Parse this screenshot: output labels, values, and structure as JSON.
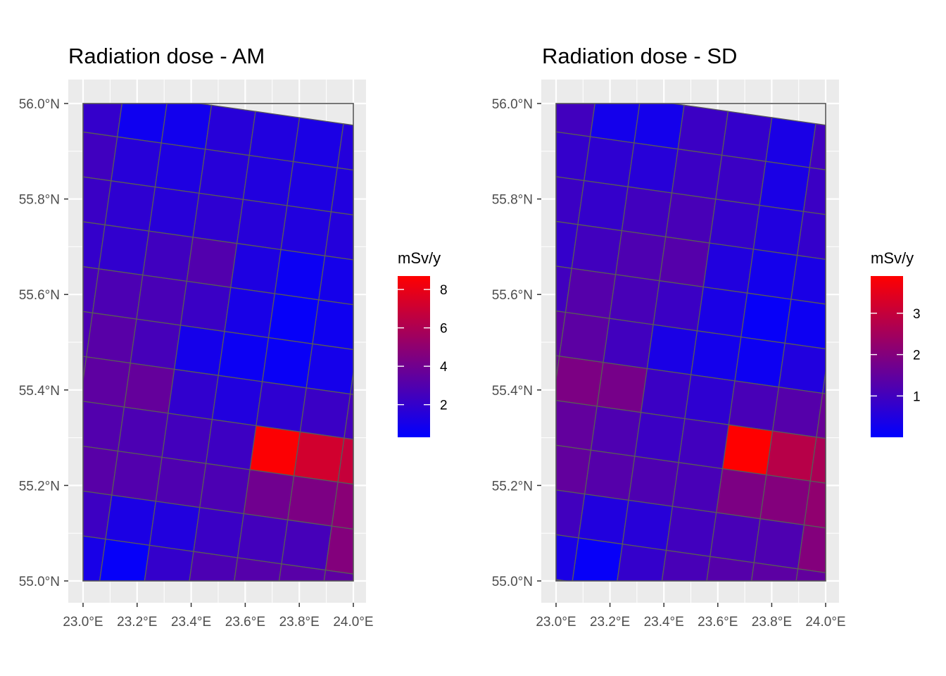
{
  "chart_data": [
    {
      "type": "heatmap",
      "title": "Radiation dose - AM",
      "x_ticks": [
        "23.0°E",
        "23.2°E",
        "23.4°E",
        "23.6°E",
        "23.8°E",
        "24.0°E"
      ],
      "x_tick_values": [
        23.0,
        23.2,
        23.4,
        23.6,
        23.8,
        24.0
      ],
      "y_ticks": [
        "55.0°N",
        "55.2°N",
        "55.4°N",
        "55.6°N",
        "55.8°N",
        "56.0°N"
      ],
      "y_tick_values": [
        55.0,
        55.2,
        55.4,
        55.6,
        55.8,
        56.0
      ],
      "xlim": [
        23.0,
        24.0
      ],
      "ylim": [
        55.0,
        56.0
      ],
      "legend": {
        "title": "mSv/y",
        "ticks": [
          "2",
          "4",
          "6",
          "8"
        ],
        "tick_values": [
          2,
          4,
          6,
          8
        ],
        "min": 0.3,
        "max": 8.7,
        "low_color": "#0000ff",
        "high_color": "#ff0000"
      },
      "grid_rows": 12,
      "grid_cols": 8,
      "values": [
        [
          2.0,
          0.8,
          0.9,
          1.6,
          1.4,
          1.2,
          1.5,
          2.6
        ],
        [
          2.4,
          1.6,
          1.3,
          1.6,
          1.4,
          1.3,
          1.4,
          2.4
        ],
        [
          2.2,
          1.8,
          1.6,
          1.8,
          1.6,
          1.4,
          1.5,
          2.2
        ],
        [
          2.0,
          1.9,
          2.4,
          3.0,
          1.3,
          0.7,
          1.0,
          1.8
        ],
        [
          2.6,
          2.8,
          2.7,
          2.2,
          1.1,
          0.5,
          0.8,
          1.6
        ],
        [
          2.8,
          3.2,
          2.6,
          1.0,
          0.7,
          0.6,
          1.0,
          1.8
        ],
        [
          3.0,
          3.4,
          3.6,
          1.9,
          1.4,
          1.8,
          2.2,
          2.6
        ],
        [
          2.6,
          3.0,
          2.8,
          2.5,
          2.3,
          8.6,
          7.2,
          6.8
        ],
        [
          1.5,
          3.2,
          3.0,
          2.9,
          2.8,
          4.0,
          4.4,
          4.8
        ],
        [
          2.0,
          2.3,
          1.2,
          1.4,
          2.2,
          2.5,
          2.6,
          4.6
        ],
        [
          1.6,
          1.1,
          0.5,
          2.0,
          2.8,
          3.1,
          3.2,
          3.4
        ],
        [
          1.3,
          1.2,
          1.2,
          1.6,
          2.6,
          3.0,
          3.0,
          3.0
        ]
      ]
    },
    {
      "type": "heatmap",
      "title": "Radiation dose - SD",
      "x_ticks": [
        "23.0°E",
        "23.2°E",
        "23.4°E",
        "23.6°E",
        "23.8°E",
        "24.0°E"
      ],
      "x_tick_values": [
        23.0,
        23.2,
        23.4,
        23.6,
        23.8,
        24.0
      ],
      "y_ticks": [
        "55.0°N",
        "55.2°N",
        "55.4°N",
        "55.6°N",
        "55.8°N",
        "56.0°N"
      ],
      "y_tick_values": [
        55.0,
        55.2,
        55.4,
        55.6,
        55.8,
        56.0
      ],
      "xlim": [
        23.0,
        24.0
      ],
      "ylim": [
        55.0,
        56.0
      ],
      "legend": {
        "title": "mSv/y",
        "ticks": [
          "1",
          "2",
          "3"
        ],
        "tick_values": [
          1,
          2,
          3
        ],
        "min": 0.0,
        "max": 3.9,
        "low_color": "#0000ff",
        "high_color": "#ff0000"
      },
      "grid_rows": 12,
      "grid_cols": 8,
      "values": [
        [
          1.0,
          0.3,
          0.3,
          0.9,
          0.8,
          0.4,
          1.0,
          1.2
        ],
        [
          0.8,
          0.7,
          0.6,
          0.9,
          0.9,
          0.4,
          0.9,
          1.1
        ],
        [
          0.9,
          0.8,
          1.0,
          1.1,
          0.8,
          0.5,
          0.8,
          0.9
        ],
        [
          0.8,
          1.0,
          1.2,
          1.3,
          0.5,
          0.3,
          0.4,
          0.7
        ],
        [
          1.0,
          1.3,
          1.1,
          0.9,
          0.4,
          0.1,
          0.2,
          0.6
        ],
        [
          1.4,
          1.4,
          1.0,
          0.4,
          0.3,
          0.2,
          0.5,
          0.8
        ],
        [
          1.6,
          1.9,
          1.8,
          0.9,
          0.7,
          1.1,
          1.3,
          1.6
        ],
        [
          1.2,
          1.5,
          1.2,
          0.9,
          1.0,
          3.9,
          2.8,
          2.6
        ],
        [
          0.5,
          1.5,
          1.3,
          1.2,
          1.1,
          1.9,
          2.0,
          2.2
        ],
        [
          0.9,
          1.0,
          0.5,
          0.6,
          1.0,
          1.1,
          1.2,
          2.0
        ],
        [
          0.7,
          0.4,
          0.1,
          0.8,
          1.1,
          1.3,
          1.4,
          1.5
        ],
        [
          0.5,
          0.4,
          0.5,
          0.7,
          1.1,
          1.2,
          1.2,
          1.2
        ]
      ]
    }
  ]
}
